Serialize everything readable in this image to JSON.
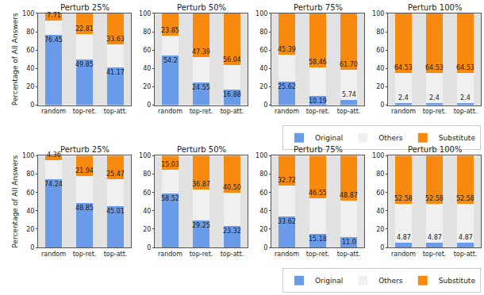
{
  "chart_data": [
    {
      "type": "bar",
      "title": "Perturb 25%",
      "y_label": "Percentage of All Answers",
      "categories": [
        "random",
        "top-ret.",
        "top-att."
      ],
      "series": [
        {
          "name": "Original",
          "color": "#6a9be8",
          "values": [
            76.45,
            49.85,
            41.17
          ],
          "data_labels": true,
          "value_labels": [
            "76.45",
            "49.85",
            "41.17"
          ]
        },
        {
          "name": "Others",
          "color": "#f0f0f0",
          "values": [
            15.84,
            27.34,
            25.2
          ],
          "data_labels": false
        },
        {
          "name": "Substitute",
          "color": "#f7890f",
          "values": [
            7.71,
            22.81,
            33.63
          ],
          "data_labels": true,
          "value_labels": [
            "7.71",
            "22.81",
            "33.63"
          ]
        }
      ],
      "ylim": [
        0,
        100
      ],
      "yticks": [
        0,
        20,
        40,
        60,
        80,
        100
      ],
      "stacked": true,
      "grid": false
    },
    {
      "type": "bar",
      "title": "Perturb 50%",
      "categories": [
        "random",
        "top-ret.",
        "top-att."
      ],
      "series": [
        {
          "name": "Original",
          "color": "#6a9be8",
          "values": [
            54.2,
            24.55,
            16.88
          ],
          "data_labels": true,
          "value_labels": [
            "54.2",
            "24.55",
            "16.88"
          ]
        },
        {
          "name": "Others",
          "color": "#f0f0f0",
          "values": [
            21.95,
            28.06,
            27.08
          ],
          "data_labels": false
        },
        {
          "name": "Substitute",
          "color": "#f7890f",
          "values": [
            23.85,
            47.39,
            56.04
          ],
          "data_labels": true,
          "value_labels": [
            "23.85",
            "47.39",
            "56.04"
          ]
        }
      ],
      "ylim": [
        0,
        100
      ],
      "yticks": [
        0,
        20,
        40,
        60,
        80,
        100
      ],
      "stacked": true,
      "grid": false
    },
    {
      "type": "bar",
      "title": "Perturb 75%",
      "categories": [
        "random",
        "top-ret.",
        "top-att."
      ],
      "series": [
        {
          "name": "Original",
          "color": "#6a9be8",
          "values": [
            25.62,
            10.19,
            5.74
          ],
          "data_labels": true,
          "value_labels": [
            "25.62",
            "10.19",
            "5.74"
          ]
        },
        {
          "name": "Others",
          "color": "#f0f0f0",
          "values": [
            28.99,
            31.35,
            32.56
          ],
          "data_labels": false
        },
        {
          "name": "Substitute",
          "color": "#f7890f",
          "values": [
            45.39,
            58.46,
            61.7
          ],
          "data_labels": true,
          "value_labels": [
            "45.39",
            "58.46",
            "61.70"
          ]
        }
      ],
      "ylim": [
        0,
        100
      ],
      "yticks": [
        0,
        20,
        40,
        60,
        80,
        100
      ],
      "stacked": true,
      "grid": false
    },
    {
      "type": "bar",
      "title": "Perturb 100%",
      "legend": "lower right",
      "categories": [
        "random",
        "top-ret.",
        "top-att."
      ],
      "series": [
        {
          "name": "Original",
          "color": "#6a9be8",
          "values": [
            2.4,
            2.4,
            2.4
          ],
          "data_labels": true,
          "value_labels": [
            "2.4",
            "2.4",
            "2.4"
          ]
        },
        {
          "name": "Others",
          "color": "#f0f0f0",
          "values": [
            33.07,
            33.07,
            33.07
          ],
          "data_labels": false
        },
        {
          "name": "Substitute",
          "color": "#f7890f",
          "values": [
            64.53,
            64.53,
            64.53
          ],
          "data_labels": true,
          "value_labels": [
            "64.53",
            "64.53",
            "64.53"
          ]
        }
      ],
      "ylim": [
        0,
        100
      ],
      "yticks": [
        0,
        20,
        40,
        60,
        80,
        100
      ],
      "stacked": true,
      "grid": false
    },
    {
      "type": "bar",
      "title": "Perturb 25%",
      "y_label": "Percentage of All Answers",
      "categories": [
        "random",
        "top-ret.",
        "top-att."
      ],
      "series": [
        {
          "name": "Original",
          "color": "#6a9be8",
          "values": [
            74.24,
            48.85,
            45.01
          ],
          "data_labels": true,
          "value_labels": [
            "74.24",
            "48.85",
            "45.01"
          ]
        },
        {
          "name": "Others",
          "color": "#f0f0f0",
          "values": [
            21.4,
            29.21,
            29.52
          ],
          "data_labels": false
        },
        {
          "name": "Substitute",
          "color": "#f7890f",
          "values": [
            4.36,
            21.94,
            25.47
          ],
          "data_labels": true,
          "value_labels": [
            "4.36",
            "21.94",
            "25.47"
          ]
        }
      ],
      "ylim": [
        0,
        100
      ],
      "yticks": [
        0,
        20,
        40,
        60,
        80,
        100
      ],
      "stacked": true,
      "grid": false
    },
    {
      "type": "bar",
      "title": "Perturb 50%",
      "categories": [
        "random",
        "top-ret.",
        "top-att."
      ],
      "series": [
        {
          "name": "Original",
          "color": "#6a9be8",
          "values": [
            58.52,
            29.25,
            23.32
          ],
          "data_labels": true,
          "value_labels": [
            "58.52",
            "29.25",
            "23.32"
          ]
        },
        {
          "name": "Others",
          "color": "#f0f0f0",
          "values": [
            26.45,
            33.88,
            36.18
          ],
          "data_labels": false
        },
        {
          "name": "Substitute",
          "color": "#f7890f",
          "values": [
            15.03,
            36.87,
            40.5
          ],
          "data_labels": true,
          "value_labels": [
            "15.03",
            "36.87",
            "40.50"
          ]
        }
      ],
      "ylim": [
        0,
        100
      ],
      "yticks": [
        0,
        20,
        40,
        60,
        80,
        100
      ],
      "stacked": true,
      "grid": false
    },
    {
      "type": "bar",
      "title": "Perturb 75%",
      "categories": [
        "random",
        "top-ret.",
        "top-att."
      ],
      "series": [
        {
          "name": "Original",
          "color": "#6a9be8",
          "values": [
            33.62,
            15.18,
            11.0
          ],
          "data_labels": true,
          "value_labels": [
            "33.62",
            "15.18",
            "11.0"
          ]
        },
        {
          "name": "Others",
          "color": "#f0f0f0",
          "values": [
            33.66,
            38.27,
            40.13
          ],
          "data_labels": false
        },
        {
          "name": "Substitute",
          "color": "#f7890f",
          "values": [
            32.72,
            46.55,
            48.87
          ],
          "data_labels": true,
          "value_labels": [
            "32.72",
            "46.55",
            "48.87"
          ]
        }
      ],
      "ylim": [
        0,
        100
      ],
      "yticks": [
        0,
        20,
        40,
        60,
        80,
        100
      ],
      "stacked": true,
      "grid": false
    },
    {
      "type": "bar",
      "title": "Perturb 100%",
      "legend": "lower right",
      "categories": [
        "random",
        "top-ret.",
        "top-att."
      ],
      "series": [
        {
          "name": "Original",
          "color": "#6a9be8",
          "values": [
            4.87,
            4.87,
            4.87
          ],
          "data_labels": true,
          "value_labels": [
            "4.87",
            "4.87",
            "4.87"
          ]
        },
        {
          "name": "Others",
          "color": "#f0f0f0",
          "values": [
            42.55,
            42.55,
            42.55
          ],
          "data_labels": false
        },
        {
          "name": "Substitute",
          "color": "#f7890f",
          "values": [
            52.58,
            52.58,
            52.58
          ],
          "data_labels": true,
          "value_labels": [
            "52.58",
            "52.58",
            "52.58"
          ]
        }
      ],
      "ylim": [
        0,
        100
      ],
      "yticks": [
        0,
        20,
        40,
        60,
        80,
        100
      ],
      "stacked": true,
      "grid": false
    }
  ]
}
